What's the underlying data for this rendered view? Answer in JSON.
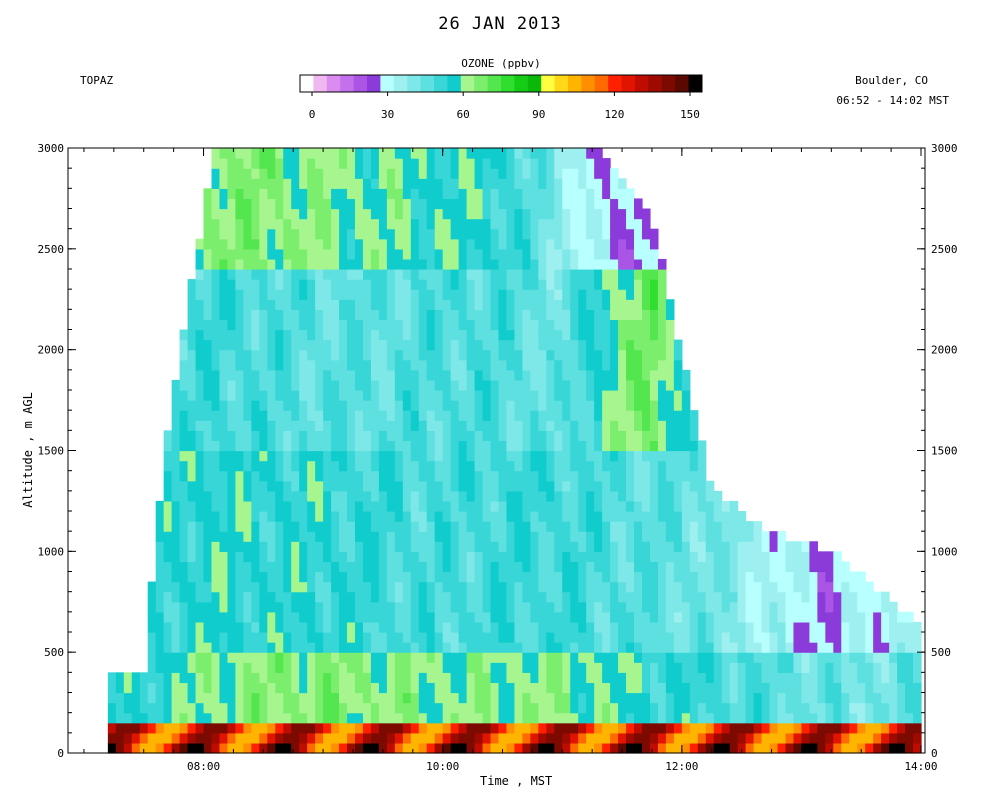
{
  "header": {
    "date": "26 JAN 2013",
    "station": "TOPAZ",
    "location": "Boulder, CO",
    "time_range": "06:52 - 14:02 MST",
    "colorbar_title": "OZONE (ppbv)"
  },
  "colorbar": {
    "ticks": [
      "0",
      "30",
      "60",
      "90",
      "120",
      "150"
    ],
    "min": 0,
    "max": 150,
    "colors": [
      "#ffffff",
      "#f0b8f0",
      "#dc8cf0",
      "#c470ec",
      "#aa55e6",
      "#8b3bd9",
      "#b8ffff",
      "#9ef0f0",
      "#7ee8e8",
      "#5ee0e0",
      "#38d6d6",
      "#10cccc",
      "#a6f58f",
      "#7cee6e",
      "#54e64e",
      "#2fde2f",
      "#14cc14",
      "#0ab80a",
      "#ffff40",
      "#ffd818",
      "#ffb400",
      "#ff8f00",
      "#ff6a00",
      "#ff2000",
      "#e01400",
      "#c00c00",
      "#9e0a00",
      "#7c0a00",
      "#5a0800",
      "#000000"
    ]
  },
  "chart_data": {
    "type": "heatmap",
    "title": "26 JAN 2013",
    "xlabel": "Time , MST",
    "ylabel": "Altitude , m AGL",
    "xlim": [
      "06:52",
      "14:02"
    ],
    "ylim": [
      0,
      3000
    ],
    "x_ticks": [
      "08:00",
      "10:00",
      "12:00",
      "14:00"
    ],
    "y_ticks": [
      "0",
      "500",
      "1000",
      "1500",
      "2000",
      "2500",
      "3000"
    ],
    "z_label": "OZONE (ppbv)",
    "z_range": [
      0,
      150
    ],
    "profiles": [
      {
        "time": "07:12",
        "top": 400,
        "bl": 55,
        "mix": 48,
        "mid": 48,
        "upper": null
      },
      {
        "time": "07:30",
        "top": 400,
        "bl": 55,
        "mix": 52,
        "mid": 50,
        "upper": null
      },
      {
        "time": "07:40",
        "top": 1480,
        "bl": 58,
        "mix": 54,
        "mid": 50,
        "upper": null
      },
      {
        "time": "08:05",
        "top": 3000,
        "bl": 62,
        "mix": 57,
        "mid": 52,
        "upper": 66
      },
      {
        "time": "08:30",
        "top": 3000,
        "bl": 65,
        "mix": 55,
        "mid": 50,
        "upper": 66
      },
      {
        "time": "09:00",
        "top": 3000,
        "bl": 66,
        "mix": 55,
        "mid": 48,
        "upper": 62
      },
      {
        "time": "09:30",
        "top": 3000,
        "bl": 64,
        "mix": 52,
        "mid": 48,
        "upper": 60
      },
      {
        "time": "10:00",
        "top": 3000,
        "bl": 62,
        "mix": 50,
        "mid": 50,
        "upper": 58
      },
      {
        "time": "10:30",
        "top": 3000,
        "bl": 62,
        "mix": 52,
        "mid": 50,
        "upper": 55
      },
      {
        "time": "11:00",
        "top": 3000,
        "bl": 63,
        "mix": 52,
        "mid": 45,
        "upper": 40
      },
      {
        "time": "11:20",
        "top": 3000,
        "bl": 60,
        "mix": 50,
        "mid": 58,
        "upper": 30
      },
      {
        "time": "11:45",
        "top": 2650,
        "bl": 55,
        "mix": 48,
        "mid": 70,
        "upper": 30
      },
      {
        "time": "12:15",
        "top": 1300,
        "bl": 52,
        "mix": 45,
        "mid": 40,
        "upper": null
      },
      {
        "time": "12:45",
        "top": 1100,
        "bl": 48,
        "mix": 35,
        "mid": null,
        "upper": null
      },
      {
        "time": "13:15",
        "top": 1000,
        "bl": 45,
        "mix": 30,
        "mid": null,
        "upper": null
      },
      {
        "time": "13:45",
        "top": 760,
        "bl": 45,
        "mix": 35,
        "mid": null,
        "upper": null
      },
      {
        "time": "14:00",
        "top": 640,
        "bl": 48,
        "mix": 40,
        "mid": null,
        "upper": null
      }
    ],
    "surface_layer_ppbv_range": [
      100,
      150
    ]
  }
}
